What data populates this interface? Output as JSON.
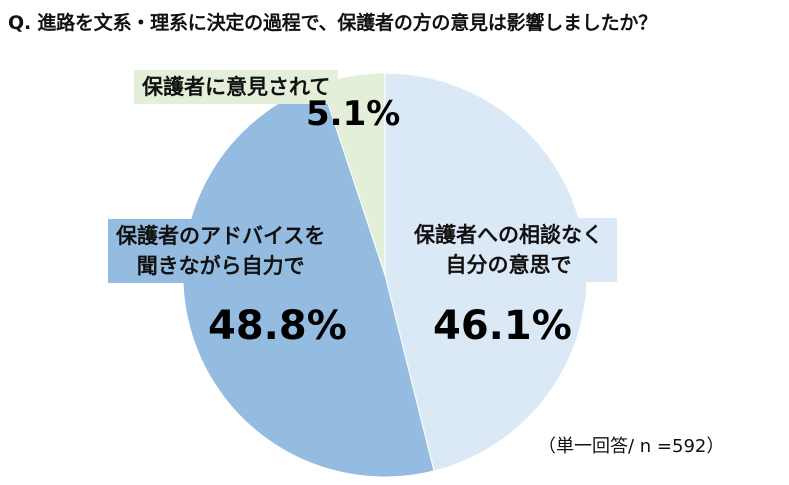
{
  "title": "Q. 進路を文系・理系に決定の過程で、保護者の方の意見は影響しましたか？",
  "chart_data": {
    "type": "pie",
    "start_angle_deg": 0,
    "direction": "clockwise",
    "slices": [
      {
        "label_lines": [
          "保護者への相談なく",
          "自分の意思で"
        ],
        "value": 46.1,
        "value_text": "46.1%",
        "color": "#dbe8f5"
      },
      {
        "label_lines": [
          "保護者のアドバイスを",
          "聞きながら自力で"
        ],
        "value": 48.8,
        "value_text": "48.8%",
        "color": "#94bbe0"
      },
      {
        "label_lines": [
          "保護者に意見されて"
        ],
        "value": 5.1,
        "value_text": "5.1%",
        "color": "#e3efd9"
      }
    ]
  },
  "footnote": "（単一回答/ n =592）"
}
